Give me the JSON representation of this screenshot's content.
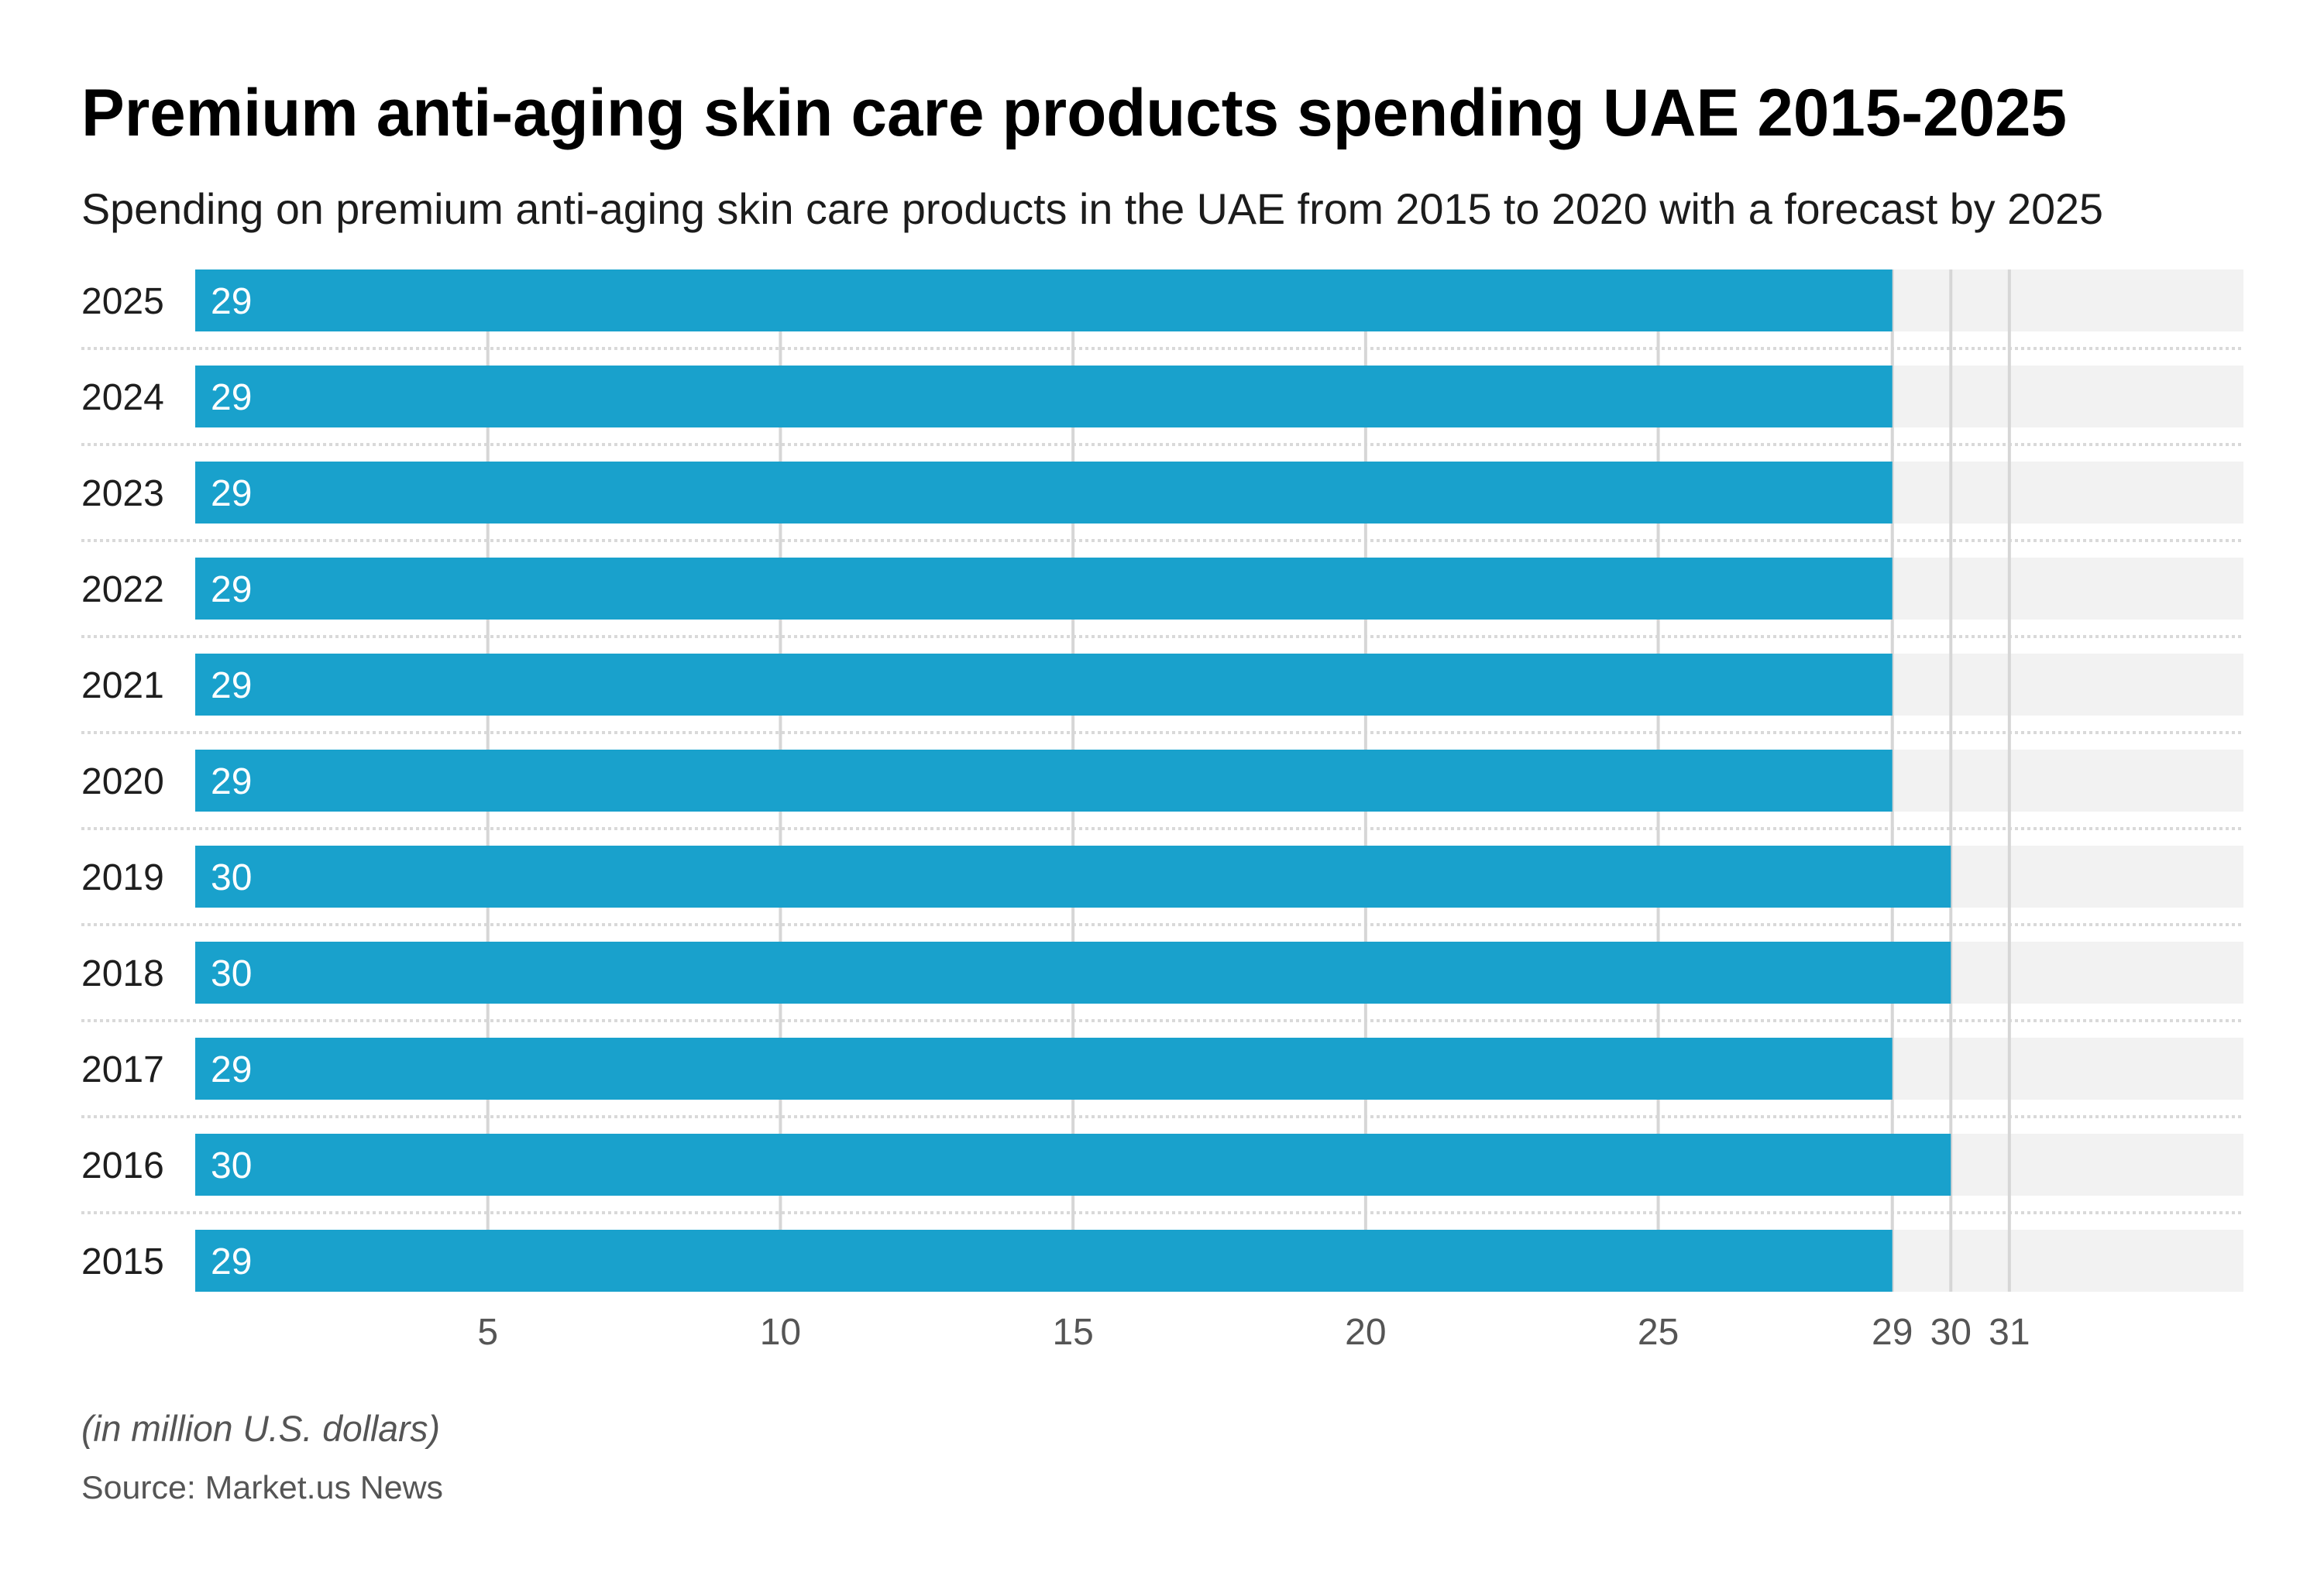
{
  "header": {
    "title": "Premium anti-aging skin care products spending UAE 2015-2025",
    "subtitle": "Spending on premium anti-aging skin care products in the UAE from 2015 to 2020 with a forecast by 2025"
  },
  "footer": {
    "units_note": "(in million U.S. dollars)",
    "source": "Source: Market.us News"
  },
  "colors": {
    "bar": "#19a1cc",
    "track": "#f2f2f2",
    "gridline": "#d6d6d6",
    "separator": "#d9d9d9",
    "bar_label": "#ffffff",
    "category_label": "#1e1e1e",
    "tick_label": "#555555"
  },
  "chart_data": {
    "type": "bar",
    "orientation": "horizontal",
    "title": "Premium anti-aging skin care products spending UAE 2015-2025",
    "subtitle": "Spending on premium anti-aging skin care products in the UAE from 2015 to 2020 with a forecast by 2025",
    "xlabel": "(in million U.S. dollars)",
    "ylabel": "",
    "categories": [
      "2025",
      "2024",
      "2023",
      "2022",
      "2021",
      "2020",
      "2019",
      "2018",
      "2017",
      "2016",
      "2015"
    ],
    "values": [
      29,
      29,
      29,
      29,
      29,
      29,
      30,
      30,
      29,
      30,
      29
    ],
    "value_labels": [
      "29",
      "29",
      "29",
      "29",
      "29",
      "29",
      "30",
      "30",
      "29",
      "30",
      "29"
    ],
    "xlim": [
      0,
      35
    ],
    "x_ticks": [
      5,
      10,
      15,
      20,
      25,
      29,
      30,
      31
    ],
    "x_tick_labels": [
      "5",
      "10",
      "15",
      "20",
      "25",
      "29",
      "30",
      "31"
    ],
    "grid": true,
    "legend": "none",
    "source": "Source: Market.us News"
  }
}
